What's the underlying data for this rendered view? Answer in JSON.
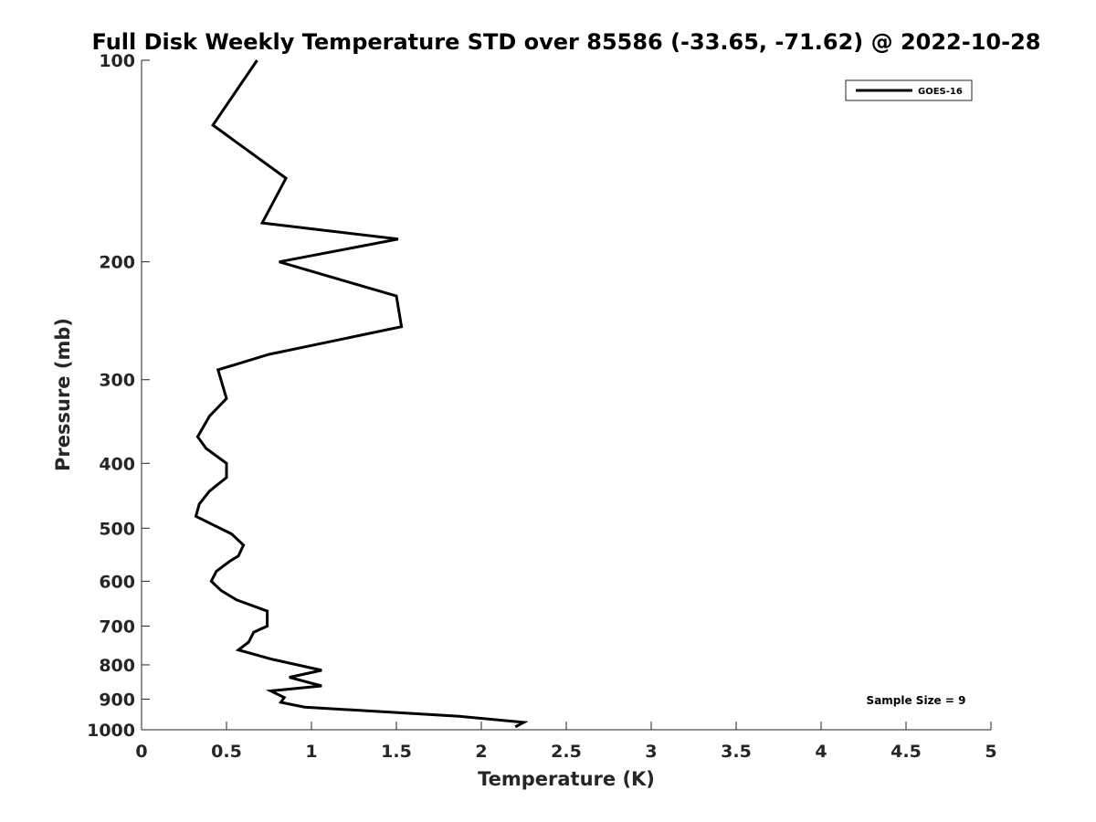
{
  "chart_data": {
    "type": "line",
    "title": "Full Disk Weekly Temperature STD over 85586 (-33.65, -71.62) @ 2022-10-28",
    "xlabel": "Temperature (K)",
    "ylabel": "Pressure (mb)",
    "xlim": [
      0,
      5
    ],
    "ylim": [
      1000,
      100
    ],
    "y_scale": "log",
    "y_reversed": true,
    "xticks": [
      0,
      0.5,
      1,
      1.5,
      2,
      2.5,
      3,
      3.5,
      4,
      4.5,
      5
    ],
    "xtick_labels": [
      "0",
      "0.5",
      "1",
      "1.5",
      "2",
      "2.5",
      "3",
      "3.5",
      "4",
      "4.5",
      "5"
    ],
    "yticks": [
      100,
      200,
      300,
      400,
      500,
      600,
      700,
      800,
      900,
      1000
    ],
    "ytick_labels": [
      "100",
      "200",
      "300",
      "400",
      "500",
      "600",
      "700",
      "800",
      "900",
      "1000"
    ],
    "grid": false,
    "legend_position": "top-right",
    "series": [
      {
        "name": "GOES-16",
        "color": "#000000",
        "points": [
          [
            0.68,
            100
          ],
          [
            0.42,
            125
          ],
          [
            0.85,
            150
          ],
          [
            0.71,
            175
          ],
          [
            1.51,
            185
          ],
          [
            0.81,
            200
          ],
          [
            1.5,
            225
          ],
          [
            1.53,
            250
          ],
          [
            0.75,
            275
          ],
          [
            0.45,
            290
          ],
          [
            0.5,
            320
          ],
          [
            0.4,
            340
          ],
          [
            0.33,
            365
          ],
          [
            0.38,
            380
          ],
          [
            0.5,
            400
          ],
          [
            0.5,
            420
          ],
          [
            0.4,
            440
          ],
          [
            0.34,
            460
          ],
          [
            0.32,
            480
          ],
          [
            0.53,
            510
          ],
          [
            0.6,
            530
          ],
          [
            0.57,
            550
          ],
          [
            0.52,
            560
          ],
          [
            0.44,
            580
          ],
          [
            0.41,
            600
          ],
          [
            0.47,
            620
          ],
          [
            0.56,
            640
          ],
          [
            0.74,
            665
          ],
          [
            0.74,
            700
          ],
          [
            0.66,
            715
          ],
          [
            0.63,
            740
          ],
          [
            0.57,
            760
          ],
          [
            0.77,
            785
          ],
          [
            1.06,
            815
          ],
          [
            0.87,
            835
          ],
          [
            1.06,
            860
          ],
          [
            0.76,
            875
          ],
          [
            0.84,
            895
          ],
          [
            0.82,
            910
          ],
          [
            0.96,
            925
          ],
          [
            1.87,
            955
          ],
          [
            2.25,
            975
          ],
          [
            2.2,
            990
          ]
        ]
      }
    ],
    "annotations": [
      "Sample Size = 9"
    ]
  }
}
